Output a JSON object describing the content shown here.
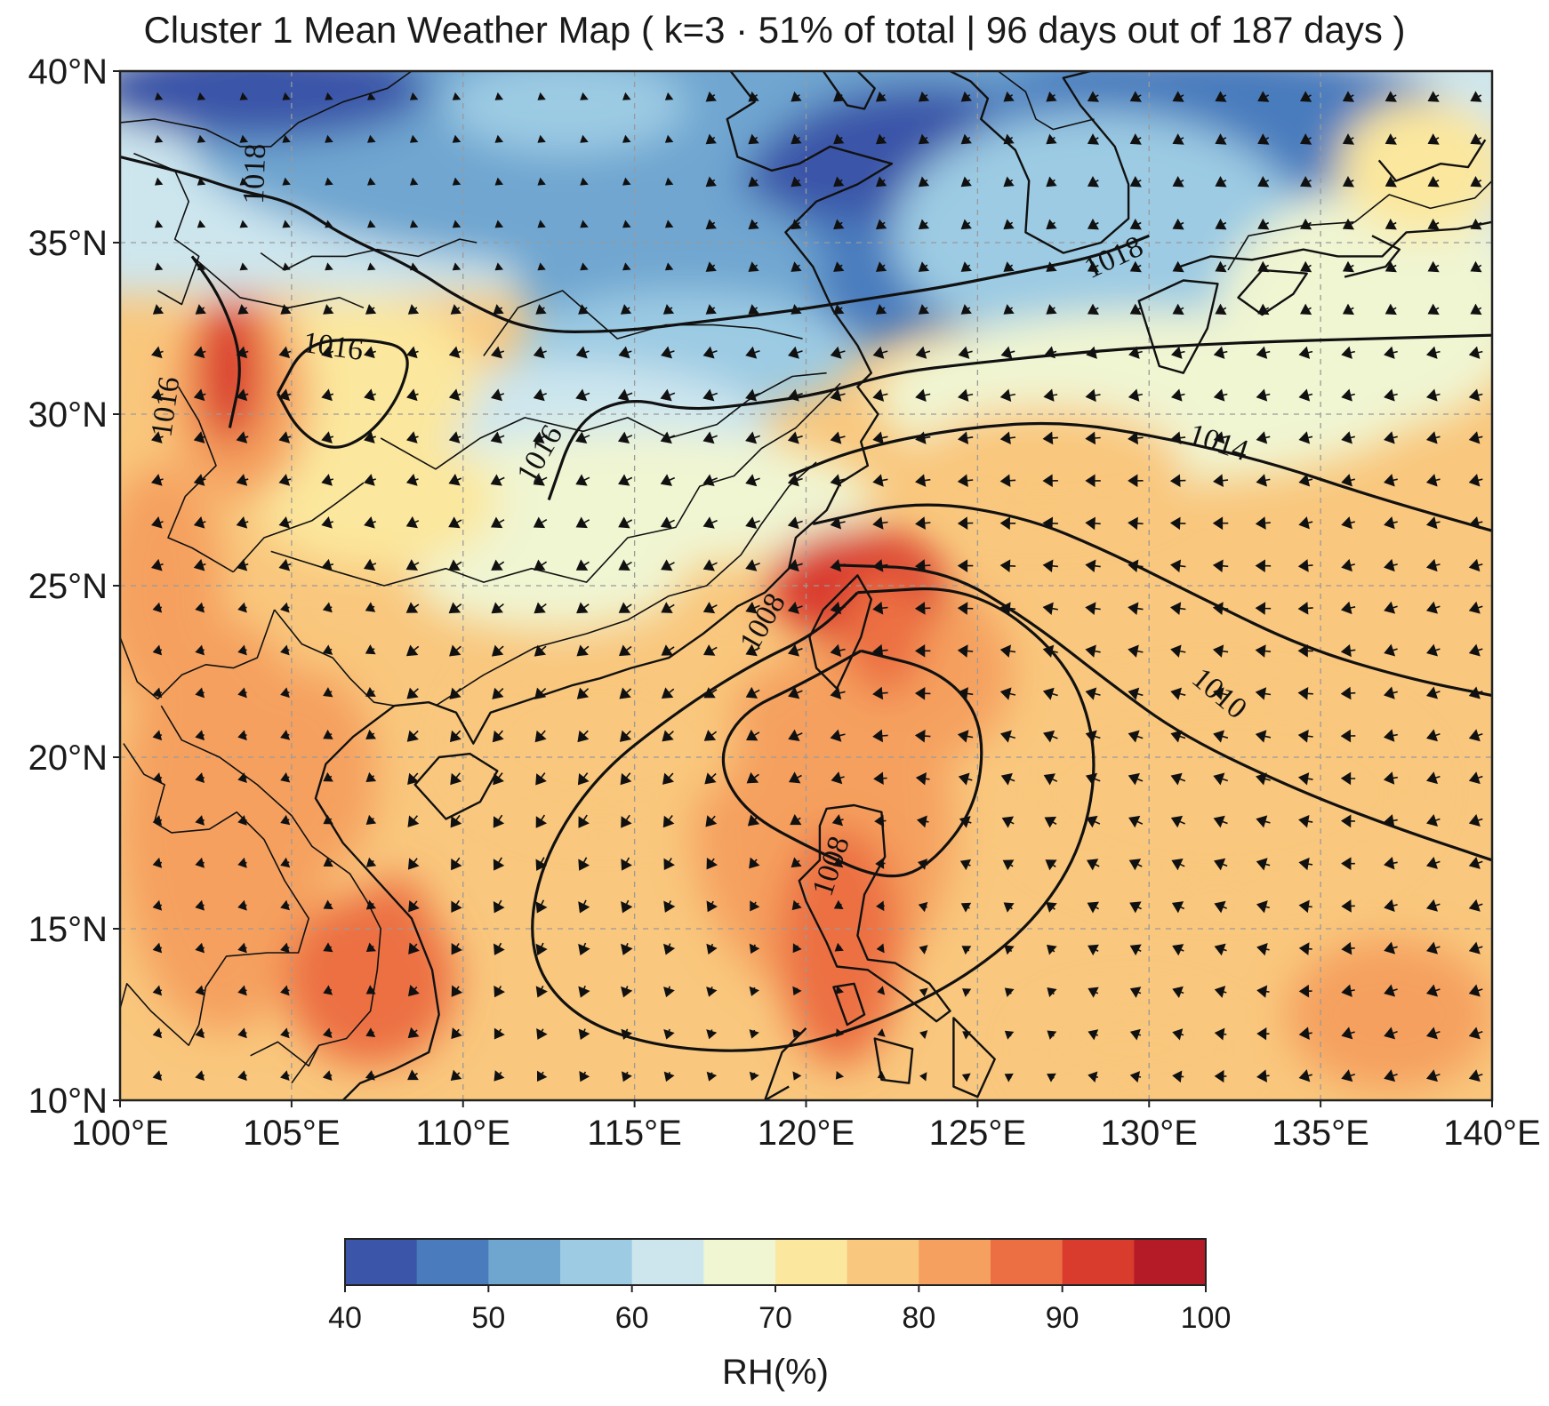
{
  "title": "Cluster 1 Mean Weather Map ( k=3 · 51% of total | 96 days out of 187 days )",
  "map": {
    "lon_range": [
      100,
      140
    ],
    "lat_range": [
      10,
      40
    ],
    "lon_ticks": [
      "100°E",
      "105°E",
      "110°E",
      "115°E",
      "120°E",
      "125°E",
      "130°E",
      "135°E",
      "140°E"
    ],
    "lat_ticks": [
      "40°N",
      "35°N",
      "30°N",
      "25°N",
      "20°N",
      "15°N",
      "10°N"
    ],
    "gridlines": "dashed",
    "field": "relative humidity (shaded)",
    "vectors": "wind arrows",
    "pressure_contours": [
      {
        "value": "1018",
        "label_lon": 104.0,
        "label_lat": 37.0
      },
      {
        "value": "1018",
        "label_lon": 129.0,
        "label_lat": 34.5
      },
      {
        "value": "1016",
        "label_lon": 106.2,
        "label_lat": 31.9
      },
      {
        "value": "1016",
        "label_lon": 101.4,
        "label_lat": 30.2
      },
      {
        "value": "1016",
        "label_lon": 112.3,
        "label_lat": 28.8
      },
      {
        "value": "1014",
        "label_lon": 132.0,
        "label_lat": 29.1
      },
      {
        "value": "1010",
        "label_lon": 132.0,
        "label_lat": 21.8
      },
      {
        "value": "1008",
        "label_lon": 118.8,
        "label_lat": 23.9
      },
      {
        "value": "1008",
        "label_lon": 120.8,
        "label_lat": 16.8
      }
    ]
  },
  "colorbar": {
    "label": "RH(%)",
    "ticks": [
      "40",
      "50",
      "60",
      "70",
      "80",
      "90",
      "100"
    ],
    "colors": [
      "#3b55a8",
      "#4a7bbd",
      "#6fa6d0",
      "#9ccbe3",
      "#cde6ee",
      "#f0f5d2",
      "#fbe79d",
      "#f9c77d",
      "#f5a05f",
      "#ec6f43",
      "#d93b2d",
      "#b41b27"
    ]
  }
}
